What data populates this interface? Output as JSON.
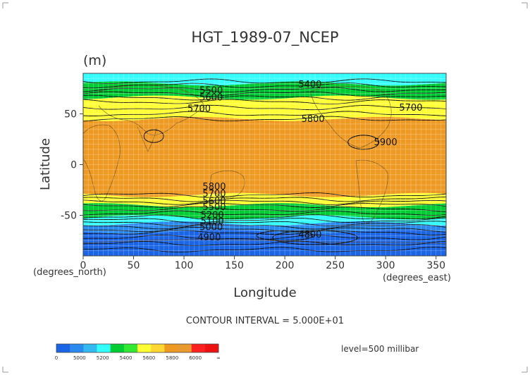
{
  "chart_data": {
    "type": "heatmap",
    "title": "HGT_1989-07_NCEP",
    "units": "(m)",
    "xlabel": "Longitude",
    "ylabel": "Latitude",
    "x_unit_label": "(degrees_east)",
    "y_unit_label": "(degrees_north)",
    "xlim": [
      0,
      360
    ],
    "ylim": [
      -90,
      90
    ],
    "x_ticks": [
      0,
      50,
      100,
      150,
      200,
      250,
      300,
      350
    ],
    "y_ticks": [
      50,
      0,
      -50
    ],
    "grid": true,
    "contour_interval_text": "CONTOUR INTERVAL = 5.000E+01",
    "level_text": "level=500 millibar",
    "colorbar": {
      "labels": [
        "0",
        "5000",
        "5200",
        "5400",
        "5600",
        "5800",
        "6000",
        "∞"
      ],
      "colors": [
        "#1a64e6",
        "#2a8af0",
        "#33b8f0",
        "#33ffff",
        "#00cc33",
        "#33e833",
        "#ffff33",
        "#ffd733",
        "#ee9a22",
        "#e89a2e",
        "#ff2020",
        "#ee1111"
      ]
    },
    "bands": [
      {
        "level": 4800,
        "lat_from": -90,
        "lat_to": -66,
        "color": "#1a64e6"
      },
      {
        "level": 5100,
        "lat_from": -66,
        "lat_to": -58,
        "color": "#2a8af0"
      },
      {
        "level": 5300,
        "lat_from": -58,
        "lat_to": -52,
        "color": "#33ffff"
      },
      {
        "level": 5500,
        "lat_from": -52,
        "lat_to": -40,
        "color": "#00cc33"
      },
      {
        "level": 5700,
        "lat_from": -40,
        "lat_to": -30,
        "color": "#ffff33"
      },
      {
        "level": 5850,
        "lat_from": -30,
        "lat_to": 45,
        "color": "#ee9a22"
      },
      {
        "level": 5700,
        "lat_from": 45,
        "lat_to": 66,
        "color": "#ffff33"
      },
      {
        "level": 5500,
        "lat_from": 66,
        "lat_to": 80,
        "color": "#00cc33"
      },
      {
        "level": 5300,
        "lat_from": 80,
        "lat_to": 90,
        "color": "#33ffff"
      }
    ],
    "contour_labels": [
      {
        "text": "5400",
        "x": 225,
        "y": 79
      },
      {
        "text": "5500",
        "x": 127,
        "y": 73
      },
      {
        "text": "5600",
        "x": 127,
        "y": 66
      },
      {
        "text": "5700",
        "x": 115,
        "y": 55
      },
      {
        "text": "5700",
        "x": 325,
        "y": 56
      },
      {
        "text": "5800",
        "x": 228,
        "y": 45
      },
      {
        "text": "5900",
        "x": 300,
        "y": 22
      },
      {
        "text": "5800",
        "x": 130,
        "y": -22
      },
      {
        "text": "5700",
        "x": 130,
        "y": -29
      },
      {
        "text": "5600",
        "x": 130,
        "y": -36
      },
      {
        "text": "5500",
        "x": 130,
        "y": -42
      },
      {
        "text": "5200",
        "x": 128,
        "y": -50
      },
      {
        "text": "5100",
        "x": 128,
        "y": -56
      },
      {
        "text": "5000",
        "x": 127,
        "y": -62
      },
      {
        "text": "4900",
        "x": 125,
        "y": -72
      },
      {
        "text": "4800",
        "x": 225,
        "y": -69
      }
    ]
  }
}
